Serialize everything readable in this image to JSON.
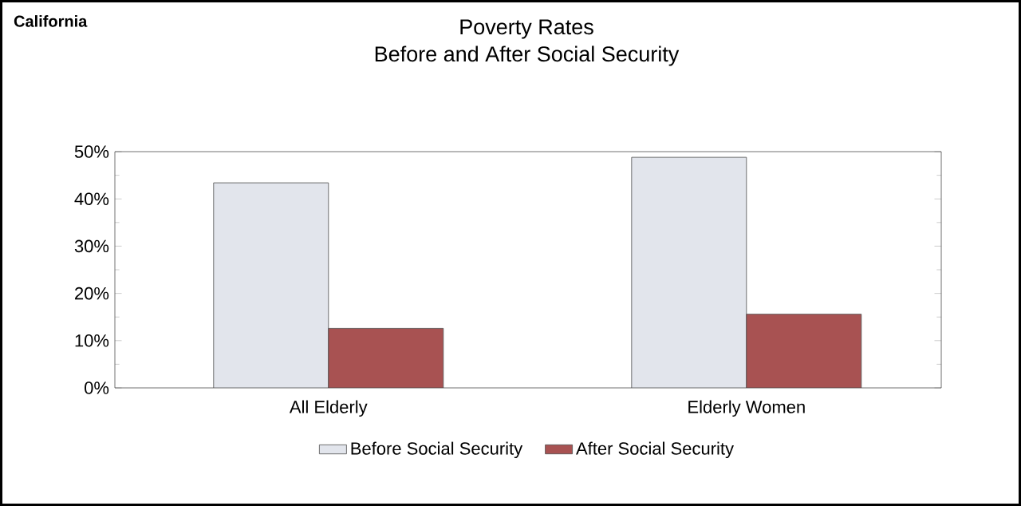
{
  "chart_data": {
    "type": "bar",
    "title": "Poverty Rates\nBefore and After Social Security",
    "categories": [
      "All Elderly",
      "Elderly Women"
    ],
    "series": [
      {
        "name": "Before Social Security",
        "color": "#e2e5ec",
        "values": [
          43.4,
          48.8
        ]
      },
      {
        "name": "After Social Security",
        "color": "#a85252",
        "values": [
          12.6,
          15.6
        ]
      }
    ],
    "ylim": [
      0,
      50
    ],
    "yticks": [
      {
        "value": 0,
        "label": "0%"
      },
      {
        "value": 10,
        "label": "10%"
      },
      {
        "value": 20,
        "label": "20%"
      },
      {
        "value": 30,
        "label": "30%"
      },
      {
        "value": 40,
        "label": "40%"
      },
      {
        "value": 50,
        "label": "50%"
      }
    ],
    "legend": "bottom",
    "grid": false,
    "annotations": [
      "California"
    ]
  }
}
